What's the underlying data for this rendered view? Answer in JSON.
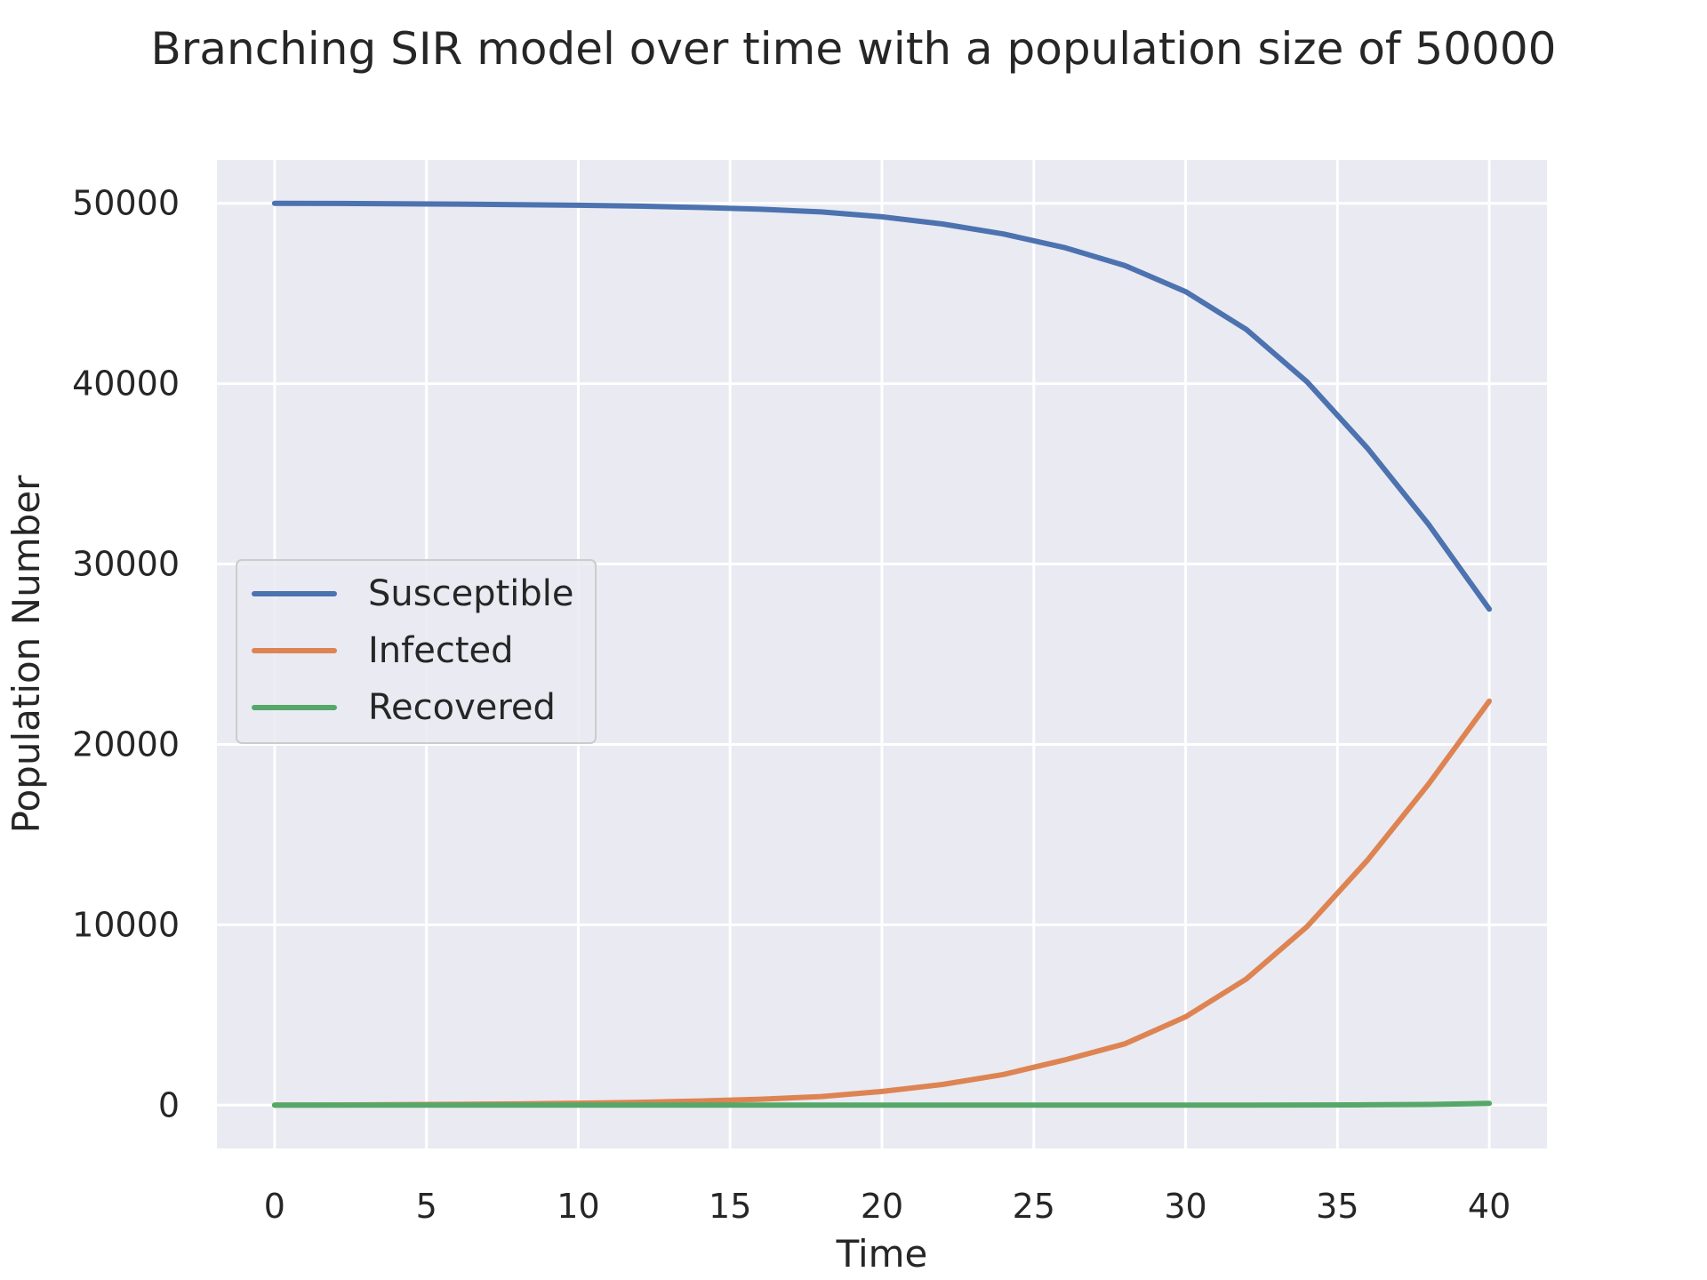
{
  "chart_data": {
    "type": "line",
    "title": "Branching SIR model over time with a population size of 50000",
    "xlabel": "Time",
    "ylabel": "Population Number",
    "xlim": [
      -1.9,
      41.9
    ],
    "ylim": [
      -2400,
      52400
    ],
    "xticks": [
      0,
      5,
      10,
      15,
      20,
      25,
      30,
      35,
      40
    ],
    "yticks": [
      0,
      10000,
      20000,
      30000,
      40000,
      50000
    ],
    "grid": true,
    "legend_position": "center-left",
    "x": [
      0,
      2,
      4,
      6,
      8,
      10,
      12,
      14,
      16,
      18,
      20,
      22,
      24,
      26,
      28,
      30,
      32,
      34,
      36,
      38,
      40
    ],
    "series": [
      {
        "name": "Susceptible",
        "color": "#4c72b0",
        "values": [
          50000,
          49990,
          49975,
          49955,
          49925,
          49890,
          49840,
          49770,
          49670,
          49520,
          49250,
          48850,
          48300,
          47550,
          46550,
          45100,
          43000,
          40100,
          36400,
          32200,
          27500
        ]
      },
      {
        "name": "Infected",
        "color": "#dd8452",
        "values": [
          0,
          10,
          25,
          45,
          70,
          110,
          160,
          230,
          330,
          480,
          760,
          1150,
          1700,
          2500,
          3400,
          4900,
          7000,
          9900,
          13600,
          17800,
          22400
        ]
      },
      {
        "name": "Recovered",
        "color": "#55a868",
        "values": [
          0,
          0,
          0,
          0,
          0,
          0,
          0,
          0,
          0,
          0,
          0,
          0,
          0,
          0,
          0,
          0,
          5,
          10,
          20,
          40,
          100
        ]
      }
    ]
  }
}
